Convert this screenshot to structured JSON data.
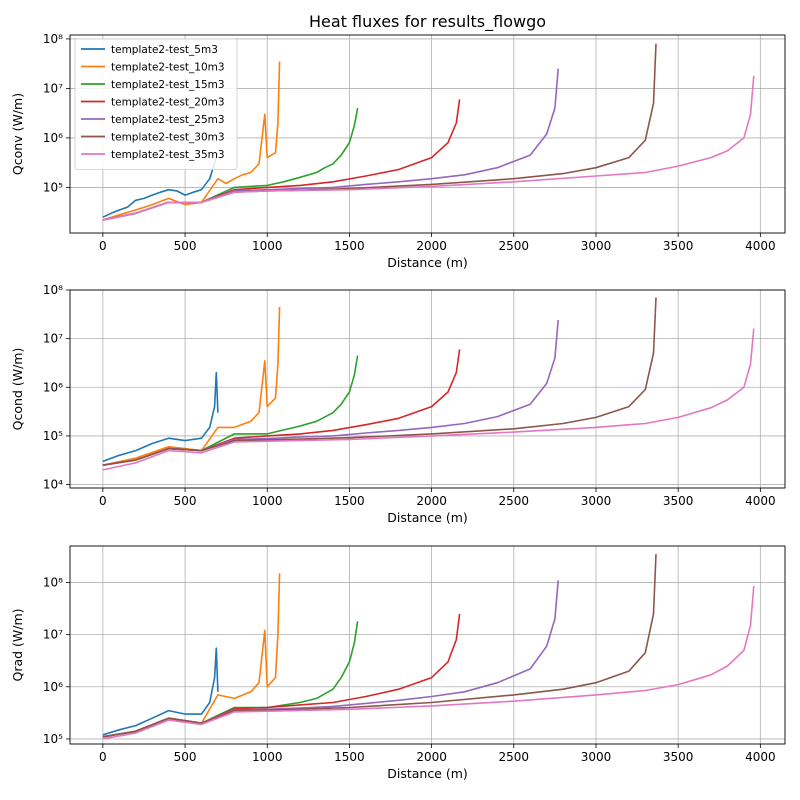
{
  "page": {
    "title": "Heat fluxes for results_flowgo"
  },
  "colors": {
    "template2-test_5m3": "#1f77b4",
    "template2-test_10m3": "#ff7f0e",
    "template2-test_15m3": "#2ca02c",
    "template2-test_20m3": "#d62728",
    "template2-test_25m3": "#9467bd",
    "template2-test_30m3": "#8c564b",
    "template2-test_35m3": "#e377c2"
  },
  "chart_data": [
    {
      "type": "line",
      "title": "Heat fluxes for results_flowgo",
      "xlabel": "Distance (m)",
      "ylabel": "Qconv (W/m)",
      "yscale": "log",
      "xlim": [
        -200,
        4150
      ],
      "ylim": [
        12000,
        120000000
      ],
      "xticks": [
        0,
        500,
        1000,
        1500,
        2000,
        2500,
        3000,
        3500,
        4000
      ],
      "xtick_labels": [
        "0",
        "500",
        "1000",
        "1500",
        "2000",
        "2500",
        "3000",
        "3500",
        "4000"
      ],
      "yticks": [
        100000,
        1000000,
        10000000,
        100000000
      ],
      "ytick_labels": [
        "10⁵",
        "10⁶",
        "10⁷",
        "10⁸"
      ],
      "grid": true,
      "legend": "top-left",
      "series": [
        {
          "name": "template2-test_5m3",
          "x": [
            0,
            50,
            100,
            150,
            200,
            250,
            300,
            350,
            400,
            450,
            500,
            550,
            600,
            650,
            690,
            700
          ],
          "y": [
            25000,
            30000,
            35000,
            40000,
            55000,
            60000,
            70000,
            80000,
            90000,
            85000,
            70000,
            80000,
            90000,
            150000,
            400000,
            500000
          ]
        },
        {
          "name": "template2-test_10m3",
          "x": [
            0,
            100,
            200,
            300,
            400,
            500,
            600,
            700,
            750,
            800,
            850,
            900,
            950,
            985,
            1000,
            1050,
            1065,
            1075
          ],
          "y": [
            22000,
            28000,
            35000,
            45000,
            60000,
            45000,
            50000,
            150000,
            120000,
            150000,
            180000,
            200000,
            300000,
            3000000,
            400000,
            500000,
            2000000,
            35000000
          ]
        },
        {
          "name": "template2-test_15m3",
          "x": [
            0,
            200,
            400,
            600,
            800,
            1000,
            1100,
            1200,
            1300,
            1350,
            1400,
            1450,
            1500,
            1530,
            1550
          ],
          "y": [
            22000,
            30000,
            50000,
            50000,
            100000,
            110000,
            130000,
            160000,
            200000,
            250000,
            300000,
            450000,
            800000,
            1800000,
            4000000
          ]
        },
        {
          "name": "template2-test_20m3",
          "x": [
            0,
            200,
            400,
            600,
            800,
            1000,
            1200,
            1400,
            1600,
            1800,
            2000,
            2100,
            2150,
            2170
          ],
          "y": [
            22000,
            30000,
            50000,
            50000,
            90000,
            100000,
            110000,
            130000,
            170000,
            230000,
            400000,
            800000,
            2000000,
            6000000
          ]
        },
        {
          "name": "template2-test_25m3",
          "x": [
            0,
            200,
            400,
            600,
            800,
            1000,
            1200,
            1400,
            1600,
            1800,
            2000,
            2200,
            2400,
            2600,
            2700,
            2750,
            2770
          ],
          "y": [
            22000,
            30000,
            50000,
            50000,
            85000,
            90000,
            95000,
            100000,
            115000,
            130000,
            150000,
            180000,
            250000,
            450000,
            1200000,
            4000000,
            25000000
          ]
        },
        {
          "name": "template2-test_30m3",
          "x": [
            0,
            200,
            400,
            600,
            800,
            1000,
            1200,
            1500,
            2000,
            2500,
            2800,
            3000,
            3200,
            3300,
            3350,
            3365
          ],
          "y": [
            22000,
            30000,
            50000,
            50000,
            80000,
            85000,
            88000,
            95000,
            115000,
            150000,
            190000,
            250000,
            400000,
            900000,
            5000000,
            80000000
          ]
        },
        {
          "name": "template2-test_35m3",
          "x": [
            0,
            200,
            400,
            600,
            800,
            1000,
            1500,
            2000,
            2500,
            3000,
            3300,
            3500,
            3700,
            3800,
            3900,
            3940,
            3960
          ],
          "y": [
            22000,
            30000,
            50000,
            50000,
            80000,
            85000,
            90000,
            105000,
            130000,
            170000,
            200000,
            270000,
            400000,
            550000,
            1000000,
            3000000,
            18000000
          ]
        }
      ]
    },
    {
      "type": "line",
      "xlabel": "Distance (m)",
      "ylabel": "Qcond (W/m)",
      "yscale": "log",
      "xlim": [
        -200,
        4150
      ],
      "ylim": [
        8500,
        100000000
      ],
      "xticks": [
        0,
        500,
        1000,
        1500,
        2000,
        2500,
        3000,
        3500,
        4000
      ],
      "xtick_labels": [
        "0",
        "500",
        "1000",
        "1500",
        "2000",
        "2500",
        "3000",
        "3500",
        "4000"
      ],
      "yticks": [
        10000,
        100000,
        1000000,
        10000000,
        100000000
      ],
      "ytick_labels": [
        "10⁴",
        "10⁵",
        "10⁶",
        "10⁷",
        "10⁸"
      ],
      "grid": true,
      "series": [
        {
          "name": "template2-test_5m3",
          "x": [
            0,
            100,
            200,
            300,
            400,
            500,
            600,
            650,
            680,
            690,
            700
          ],
          "y": [
            30000,
            40000,
            50000,
            70000,
            90000,
            80000,
            90000,
            150000,
            400000,
            2000000,
            300000
          ]
        },
        {
          "name": "template2-test_10m3",
          "x": [
            0,
            200,
            400,
            600,
            700,
            800,
            900,
            950,
            985,
            1000,
            1050,
            1065,
            1075
          ],
          "y": [
            25000,
            35000,
            60000,
            50000,
            150000,
            150000,
            200000,
            300000,
            3500000,
            400000,
            600000,
            3000000,
            45000000
          ]
        },
        {
          "name": "template2-test_15m3",
          "x": [
            0,
            200,
            400,
            600,
            800,
            1000,
            1200,
            1300,
            1400,
            1450,
            1500,
            1530,
            1550
          ],
          "y": [
            25000,
            32000,
            55000,
            50000,
            110000,
            110000,
            160000,
            200000,
            300000,
            450000,
            800000,
            1800000,
            4500000
          ]
        },
        {
          "name": "template2-test_20m3",
          "x": [
            0,
            200,
            400,
            600,
            800,
            1000,
            1200,
            1400,
            1600,
            1800,
            2000,
            2100,
            2150,
            2170
          ],
          "y": [
            25000,
            32000,
            55000,
            50000,
            90000,
            100000,
            110000,
            130000,
            170000,
            230000,
            400000,
            800000,
            2000000,
            6000000
          ]
        },
        {
          "name": "template2-test_25m3",
          "x": [
            0,
            200,
            400,
            600,
            800,
            1000,
            1200,
            1400,
            1600,
            1800,
            2000,
            2200,
            2400,
            2600,
            2700,
            2750,
            2770
          ],
          "y": [
            25000,
            32000,
            55000,
            50000,
            85000,
            88000,
            95000,
            100000,
            115000,
            130000,
            150000,
            180000,
            250000,
            450000,
            1200000,
            4000000,
            24000000
          ]
        },
        {
          "name": "template2-test_30m3",
          "x": [
            0,
            200,
            400,
            600,
            800,
            1000,
            1200,
            1500,
            2000,
            2500,
            2800,
            3000,
            3200,
            3300,
            3350,
            3365
          ],
          "y": [
            25000,
            32000,
            55000,
            50000,
            80000,
            83000,
            86000,
            92000,
            110000,
            140000,
            180000,
            240000,
            400000,
            900000,
            5000000,
            70000000
          ]
        },
        {
          "name": "template2-test_35m3",
          "x": [
            0,
            200,
            400,
            600,
            800,
            1000,
            1500,
            2000,
            2500,
            3000,
            3300,
            3500,
            3700,
            3800,
            3900,
            3940,
            3960
          ],
          "y": [
            20000,
            28000,
            50000,
            45000,
            75000,
            78000,
            85000,
            100000,
            120000,
            150000,
            180000,
            240000,
            380000,
            550000,
            1000000,
            3000000,
            16000000
          ]
        }
      ]
    },
    {
      "type": "line",
      "xlabel": "Distance (m)",
      "ylabel": "Qrad (W/m)",
      "yscale": "log",
      "xlim": [
        -200,
        4150
      ],
      "ylim": [
        80000,
        500000000
      ],
      "xticks": [
        0,
        500,
        1000,
        1500,
        2000,
        2500,
        3000,
        3500,
        4000
      ],
      "xtick_labels": [
        "0",
        "500",
        "1000",
        "1500",
        "2000",
        "2500",
        "3000",
        "3500",
        "4000"
      ],
      "yticks": [
        100000,
        1000000,
        10000000,
        100000000
      ],
      "ytick_labels": [
        "10⁵",
        "10⁶",
        "10⁷",
        "10⁸"
      ],
      "grid": true,
      "series": [
        {
          "name": "template2-test_5m3",
          "x": [
            0,
            100,
            200,
            300,
            400,
            500,
            600,
            650,
            680,
            690,
            700
          ],
          "y": [
            120000,
            150000,
            180000,
            250000,
            350000,
            300000,
            300000,
            500000,
            1500000,
            5500000,
            800000
          ]
        },
        {
          "name": "template2-test_10m3",
          "x": [
            0,
            200,
            400,
            600,
            700,
            800,
            900,
            950,
            985,
            1000,
            1050,
            1065,
            1075
          ],
          "y": [
            110000,
            140000,
            250000,
            200000,
            700000,
            600000,
            800000,
            1200000,
            12000000,
            1000000,
            1500000,
            10000000,
            150000000
          ]
        },
        {
          "name": "template2-test_15m3",
          "x": [
            0,
            200,
            400,
            600,
            800,
            1000,
            1200,
            1300,
            1400,
            1450,
            1500,
            1530,
            1550
          ],
          "y": [
            110000,
            140000,
            250000,
            200000,
            400000,
            400000,
            500000,
            600000,
            900000,
            1500000,
            3000000,
            7000000,
            18000000
          ]
        },
        {
          "name": "template2-test_20m3",
          "x": [
            0,
            200,
            400,
            600,
            800,
            1000,
            1200,
            1400,
            1600,
            1800,
            2000,
            2100,
            2150,
            2170
          ],
          "y": [
            110000,
            140000,
            250000,
            200000,
            380000,
            400000,
            450000,
            500000,
            650000,
            900000,
            1500000,
            3000000,
            8000000,
            25000000
          ]
        },
        {
          "name": "template2-test_25m3",
          "x": [
            0,
            200,
            400,
            600,
            800,
            1000,
            1200,
            1400,
            1600,
            1800,
            2000,
            2200,
            2400,
            2600,
            2700,
            2750,
            2770
          ],
          "y": [
            110000,
            140000,
            250000,
            200000,
            360000,
            370000,
            390000,
            420000,
            480000,
            550000,
            650000,
            800000,
            1200000,
            2200000,
            6000000,
            20000000,
            110000000
          ]
        },
        {
          "name": "template2-test_30m3",
          "x": [
            0,
            200,
            400,
            600,
            800,
            1000,
            1200,
            1500,
            2000,
            2500,
            2800,
            3000,
            3200,
            3300,
            3350,
            3365
          ],
          "y": [
            110000,
            140000,
            250000,
            200000,
            350000,
            360000,
            370000,
            400000,
            500000,
            700000,
            900000,
            1200000,
            2000000,
            4500000,
            25000000,
            350000000
          ]
        },
        {
          "name": "template2-test_35m3",
          "x": [
            0,
            200,
            400,
            600,
            800,
            1000,
            1500,
            2000,
            2500,
            3000,
            3300,
            3500,
            3700,
            3800,
            3900,
            3940,
            3960
          ],
          "y": [
            100000,
            130000,
            230000,
            190000,
            330000,
            340000,
            370000,
            430000,
            530000,
            700000,
            850000,
            1100000,
            1700000,
            2500000,
            5000000,
            15000000,
            85000000
          ]
        }
      ]
    }
  ]
}
